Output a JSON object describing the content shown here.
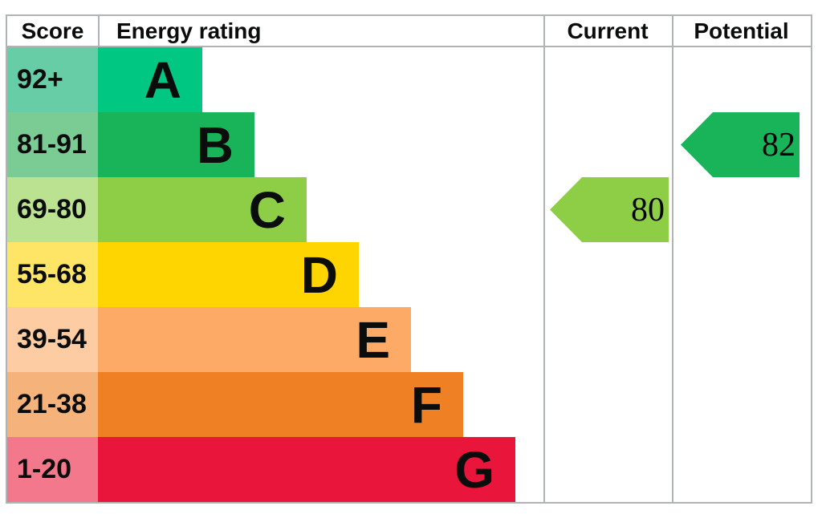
{
  "header": {
    "score": "Score",
    "energy_rating": "Energy rating",
    "current": "Current",
    "potential": "Potential"
  },
  "bands": [
    {
      "score": "92+",
      "letter": "A",
      "bar_color": "#00c781",
      "score_color": "#66cda6"
    },
    {
      "score": "81-91",
      "letter": "B",
      "bar_color": "#19b459",
      "score_color": "#7bcb95"
    },
    {
      "score": "69-80",
      "letter": "C",
      "bar_color": "#8dce46",
      "score_color": "#bae290"
    },
    {
      "score": "55-68",
      "letter": "D",
      "bar_color": "#ffd500",
      "score_color": "#ffe566"
    },
    {
      "score": "39-54",
      "letter": "E",
      "bar_color": "#fcaa65",
      "score_color": "#fdcca3"
    },
    {
      "score": "21-38",
      "letter": "F",
      "bar_color": "#ef8023",
      "score_color": "#f5b37b"
    },
    {
      "score": "1-20",
      "letter": "G",
      "bar_color": "#e9153b",
      "score_color": "#f3788c"
    }
  ],
  "current": {
    "value": "80",
    "band": "C",
    "color": "#8dce46"
  },
  "potential": {
    "value": "82",
    "band": "B",
    "color": "#19b459"
  },
  "border_color": "#b1b4b6",
  "chart_data": {
    "type": "bar",
    "title": "EPC energy rating chart",
    "columns": [
      "Score",
      "Energy rating",
      "Current",
      "Potential"
    ],
    "categories": [
      "A",
      "B",
      "C",
      "D",
      "E",
      "F",
      "G"
    ],
    "score_ranges": [
      "92+",
      "81-91",
      "69-80",
      "55-68",
      "39-54",
      "21-38",
      "1-20"
    ],
    "bar_colors": [
      "#00c781",
      "#19b459",
      "#8dce46",
      "#ffd500",
      "#fcaa65",
      "#ef8023",
      "#e9153b"
    ],
    "bar_relative_widths": [
      130,
      195,
      260,
      325,
      390,
      455,
      520
    ],
    "current_rating": {
      "value": 80,
      "band": "C"
    },
    "potential_rating": {
      "value": 82,
      "band": "B"
    },
    "legend_position": "none",
    "grid": false
  }
}
